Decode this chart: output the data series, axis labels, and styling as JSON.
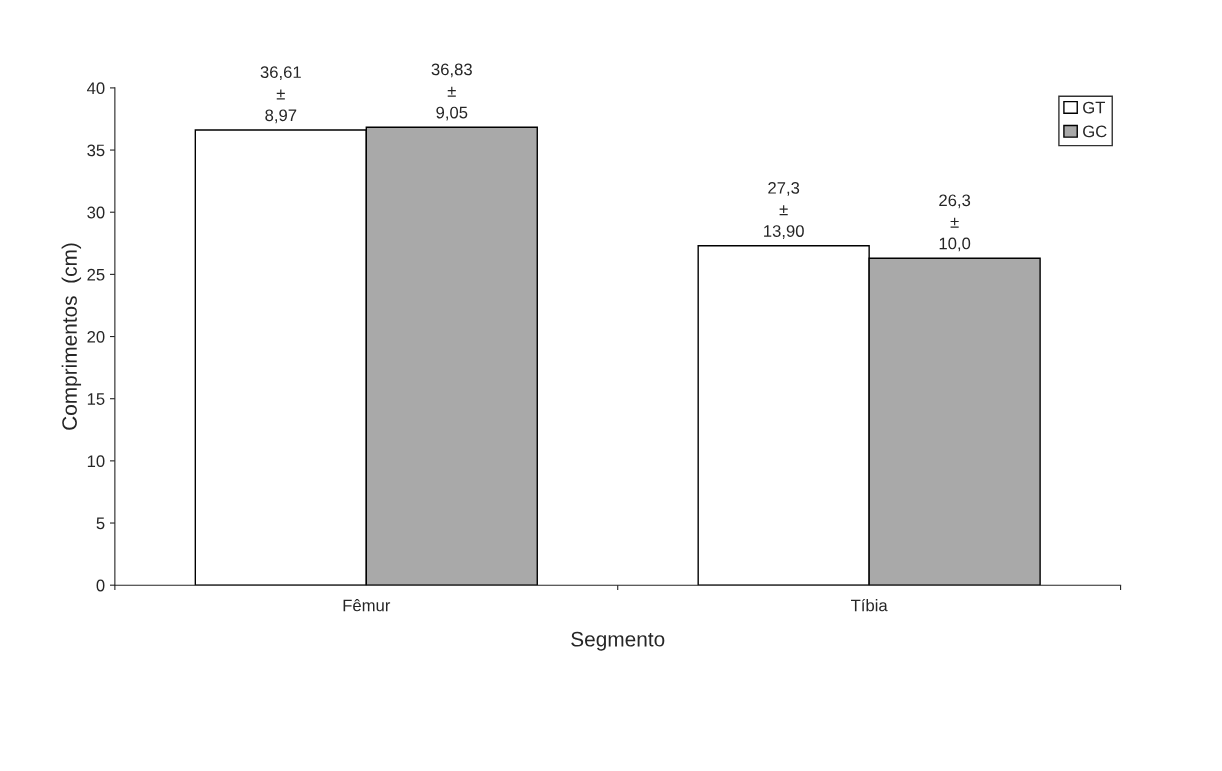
{
  "chart_data": {
    "type": "bar",
    "xlabel": "Segmento",
    "ylabel": "Comprimentos  (cm)",
    "categories": [
      "Fêmur",
      "Tíbia"
    ],
    "series": [
      {
        "name": "GT",
        "color": "#ffffff",
        "values": [
          36.61,
          27.3
        ],
        "value_labels": [
          "36,61\n±\n8,97",
          "27,3\n±\n13,90"
        ]
      },
      {
        "name": "GC",
        "color": "#a9a9a9",
        "values": [
          36.83,
          26.3
        ],
        "value_labels": [
          "36,83\n±\n9,05",
          "26,3\n±\n10,0"
        ]
      }
    ],
    "ylim": [
      0,
      40
    ],
    "yticks": [
      0,
      5,
      10,
      15,
      20,
      25,
      30,
      35,
      40
    ],
    "grid": false,
    "legend": "top right"
  }
}
